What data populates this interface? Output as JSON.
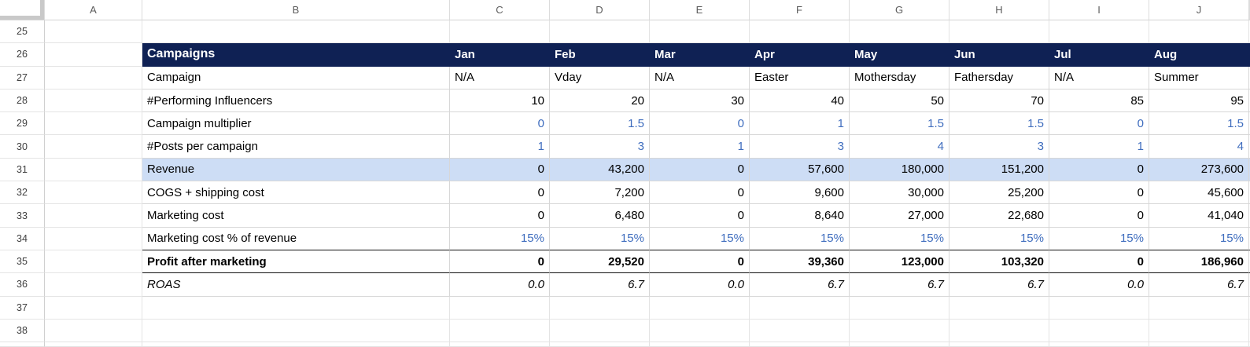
{
  "sheet": {
    "columns": [
      "A",
      "B",
      "C",
      "D",
      "E",
      "F",
      "G",
      "H",
      "I",
      "J"
    ],
    "colors": {
      "navy": "#0f2154",
      "hl": "#cdddf5",
      "blue": "#3f6dbe",
      "grid": "#e4e4e4",
      "tline": "#d7d7d7",
      "blk": "#111111"
    },
    "rows": [
      {
        "num": "25",
        "label": "",
        "values": [
          "",
          "",
          "",
          "",
          "",
          "",
          "",
          ""
        ],
        "row_style": "empty",
        "label_style": "",
        "value_style": ""
      },
      {
        "num": "26",
        "label": "Campaigns",
        "values": [
          "Jan",
          "Feb",
          "Mar",
          "Apr",
          "May",
          "Jun",
          "Jul",
          "Aug"
        ],
        "row_style": "header",
        "label_style": "title",
        "value_style": "left"
      },
      {
        "num": "27",
        "label": "Campaign",
        "values": [
          "N/A",
          "Vday",
          "N/A",
          "Easter",
          "Mothersday",
          "Fathersday",
          "N/A",
          "Summer"
        ],
        "row_style": "",
        "label_style": "",
        "value_style": "left"
      },
      {
        "num": "28",
        "label": "#Performing Influencers",
        "values": [
          "10",
          "20",
          "30",
          "40",
          "50",
          "70",
          "85",
          "95"
        ],
        "row_style": "",
        "label_style": "",
        "value_style": ""
      },
      {
        "num": "29",
        "label": "Campaign multiplier",
        "values": [
          "0",
          "1.5",
          "0",
          "1",
          "1.5",
          "1.5",
          "0",
          "1.5"
        ],
        "row_style": "",
        "label_style": "",
        "value_style": "blue"
      },
      {
        "num": "30",
        "label": "#Posts per campaign",
        "values": [
          "1",
          "3",
          "1",
          "3",
          "4",
          "3",
          "1",
          "4"
        ],
        "row_style": "",
        "label_style": "",
        "value_style": "blue"
      },
      {
        "num": "31",
        "label": "Revenue",
        "values": [
          "0",
          "43,200",
          "0",
          "57,600",
          "180,000",
          "151,200",
          "0",
          "273,600"
        ],
        "row_style": "highlight",
        "label_style": "",
        "value_style": ""
      },
      {
        "num": "32",
        "label": "COGS + shipping cost",
        "values": [
          "0",
          "7,200",
          "0",
          "9,600",
          "30,000",
          "25,200",
          "0",
          "45,600"
        ],
        "row_style": "",
        "label_style": "",
        "value_style": ""
      },
      {
        "num": "33",
        "label": "Marketing cost",
        "values": [
          "0",
          "6,480",
          "0",
          "8,640",
          "27,000",
          "22,680",
          "0",
          "41,040"
        ],
        "row_style": "",
        "label_style": "",
        "value_style": ""
      },
      {
        "num": "34",
        "label": "Marketing cost % of revenue",
        "values": [
          "15%",
          "15%",
          "15%",
          "15%",
          "15%",
          "15%",
          "15%",
          "15%"
        ],
        "row_style": "thick-bottom",
        "label_style": "",
        "value_style": "blue"
      },
      {
        "num": "35",
        "label": "Profit after marketing",
        "values": [
          "0",
          "29,520",
          "0",
          "39,360",
          "123,000",
          "103,320",
          "0",
          "186,960"
        ],
        "row_style": "thick-bottom",
        "label_style": "bold",
        "value_style": "bold"
      },
      {
        "num": "36",
        "label": "ROAS",
        "values": [
          "0.0",
          "6.7",
          "0.0",
          "6.7",
          "6.7",
          "6.7",
          "0.0",
          "6.7"
        ],
        "row_style": "",
        "label_style": "italic",
        "value_style": "italic"
      },
      {
        "num": "37",
        "label": "",
        "values": [
          "",
          "",
          "",
          "",
          "",
          "",
          "",
          ""
        ],
        "row_style": "empty",
        "label_style": "",
        "value_style": ""
      },
      {
        "num": "38",
        "label": "",
        "values": [
          "",
          "",
          "",
          "",
          "",
          "",
          "",
          ""
        ],
        "row_style": "empty",
        "label_style": "",
        "value_style": ""
      }
    ]
  }
}
